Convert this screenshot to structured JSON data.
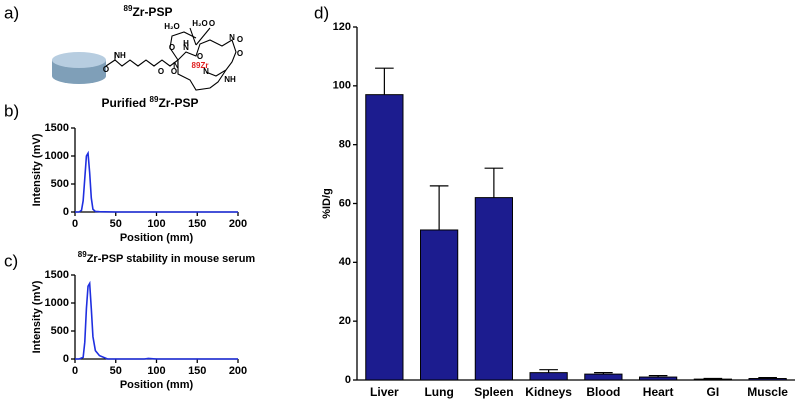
{
  "panel_labels": [
    "a)",
    "b)",
    "c)",
    "d)"
  ],
  "structure": {
    "title": {
      "sup": "89",
      "text": "Zr-PSP"
    },
    "caption": {
      "prefix": "Purified ",
      "sup": "89",
      "text": "Zr-PSP"
    },
    "atoms": [
      "H₂O",
      "H₂O",
      "O",
      "O",
      "N",
      "H",
      "N",
      "O",
      "O",
      "N",
      "O",
      "O",
      "89Zr",
      "N",
      "O",
      "NH",
      "NH",
      "O"
    ]
  },
  "chart_data": [
    {
      "type": "line",
      "color": "#1f2fe0",
      "x_label": "Position (mm)",
      "y_label": "Intensity (mV)",
      "xlim": [
        0,
        200
      ],
      "xticks": [
        0,
        50,
        100,
        150,
        200
      ],
      "ylim": [
        0,
        1500
      ],
      "yticks": [
        0,
        500,
        1000,
        1500
      ],
      "x": [
        0,
        5,
        8,
        10,
        12,
        14,
        16,
        18,
        20,
        22,
        25,
        30,
        50,
        100,
        150,
        200
      ],
      "values": [
        0,
        0,
        30,
        200,
        600,
        1000,
        1050,
        700,
        250,
        50,
        10,
        5,
        0,
        0,
        0,
        0
      ]
    },
    {
      "type": "line",
      "color": "#1f2fe0",
      "title": {
        "sup": "89",
        "text": "Zr-PSP stability in mouse serum"
      },
      "x_label": "Position (mm)",
      "y_label": "Intensity (mV)",
      "xlim": [
        0,
        200
      ],
      "xticks": [
        0,
        50,
        100,
        150,
        200
      ],
      "ylim": [
        0,
        1500
      ],
      "yticks": [
        0,
        500,
        1000,
        1500
      ],
      "x": [
        0,
        5,
        10,
        12,
        14,
        16,
        18,
        20,
        22,
        25,
        30,
        40,
        85,
        90,
        100,
        150,
        200
      ],
      "values": [
        0,
        0,
        30,
        300,
        900,
        1300,
        1350,
        900,
        400,
        150,
        60,
        0,
        0,
        10,
        0,
        0,
        0
      ]
    },
    {
      "type": "bar",
      "color": "#1c1c8f",
      "y_label": "%ID/g",
      "ylim": [
        0,
        120
      ],
      "yticks": [
        0,
        20,
        40,
        60,
        80,
        100,
        120
      ],
      "categories": [
        "Liver",
        "Lung",
        "Spleen",
        "Kidneys",
        "Blood",
        "Heart",
        "GI",
        "Muscle"
      ],
      "values": [
        97,
        51,
        62,
        2.5,
        2,
        1,
        0.3,
        0.5
      ],
      "errors": [
        9,
        15,
        10,
        1,
        0.5,
        0.5,
        0.2,
        0.3
      ]
    }
  ]
}
